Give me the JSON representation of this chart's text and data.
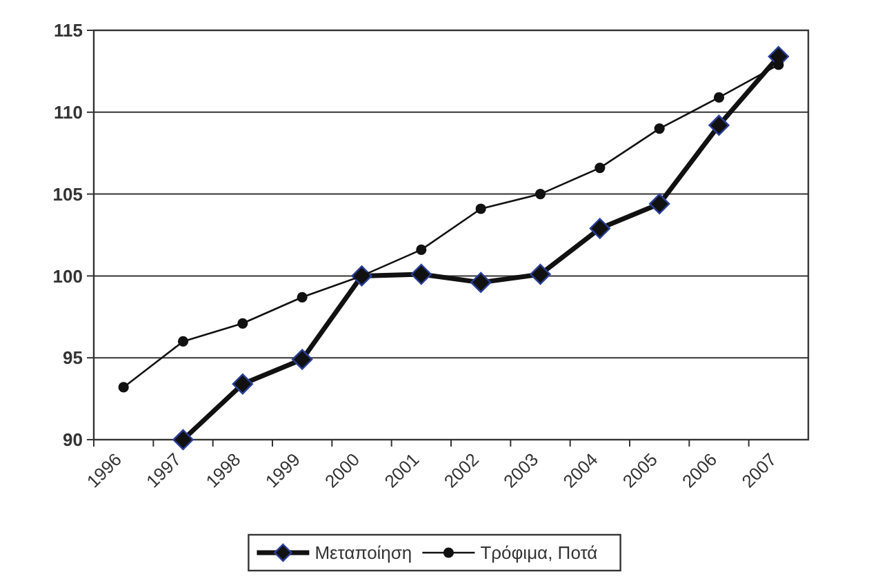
{
  "chart_data": {
    "type": "line",
    "categories": [
      "1996",
      "1997",
      "1998",
      "1999",
      "2000",
      "2001",
      "2002",
      "2003",
      "2004",
      "2005",
      "2006",
      "2007"
    ],
    "series": [
      {
        "name": "Μεταποίηση",
        "color": "#111111",
        "marker": "diamond",
        "values": [
          null,
          90,
          93.4,
          94.9,
          100,
          100.1,
          99.6,
          100.1,
          102.9,
          104.4,
          109.2,
          113.4
        ]
      },
      {
        "name": "Τρόφιμα, Ποτά",
        "color": "#111111",
        "marker": "circle",
        "values": [
          93.2,
          96,
          97.1,
          98.7,
          100,
          101.6,
          104.1,
          105,
          106.6,
          109,
          110.9,
          112.9
        ]
      }
    ],
    "ylim": [
      90,
      115
    ],
    "yticks": [
      90,
      95,
      100,
      105,
      110,
      115
    ],
    "grid": "y",
    "legend": "bottom"
  }
}
